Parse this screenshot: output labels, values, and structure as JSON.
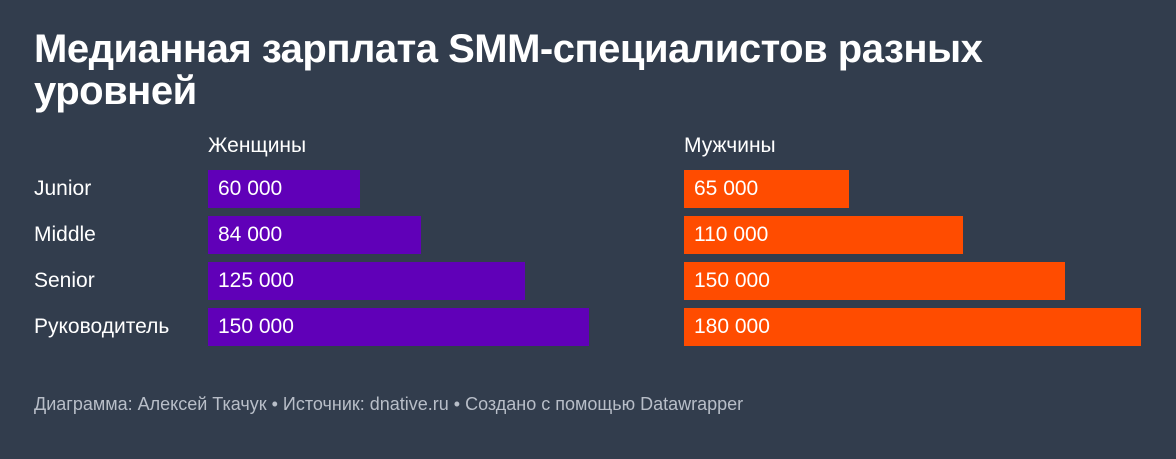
{
  "title": "Медианная зарплата SMM-специалистов разных уровней",
  "footer": "Диаграмма: Алексей Ткачук • Источник: dnative.ru • Создано с помощью Datawrapper",
  "colors": {
    "background": "#323d4d",
    "women": "#6000b8",
    "men": "#ff4c00"
  },
  "chart_data": {
    "type": "bar",
    "orientation": "horizontal",
    "categories": [
      "Junior",
      "Middle",
      "Senior",
      "Руководитель"
    ],
    "series": [
      {
        "name": "Женщины",
        "values": [
          60000,
          84000,
          125000,
          150000
        ],
        "labels": [
          "60 000",
          "84 000",
          "125 000",
          "150 000"
        ]
      },
      {
        "name": "Мужчины",
        "values": [
          65000,
          110000,
          150000,
          180000
        ],
        "labels": [
          "65 000",
          "110 000",
          "150 000",
          "180 000"
        ]
      }
    ],
    "xlim": [
      0,
      180000
    ],
    "grid": false,
    "layout": "small-multiples"
  }
}
